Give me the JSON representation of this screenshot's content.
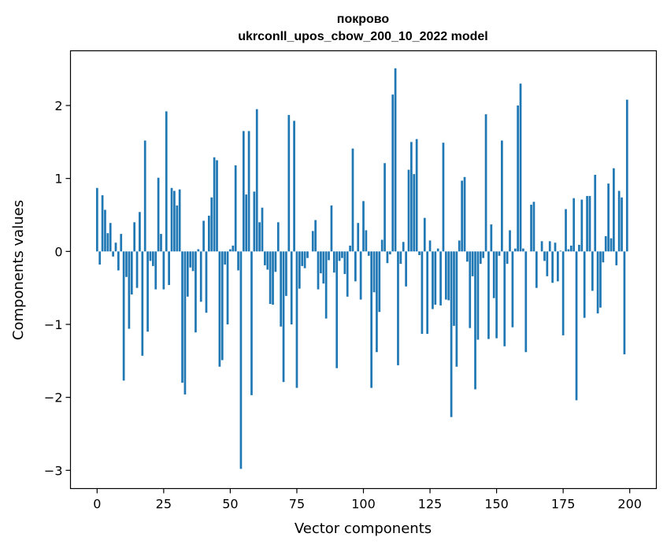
{
  "chart_data": {
    "type": "bar",
    "title_line1": "покрово",
    "title_line2": "ukrconll_upos_cbow_200_10_2022 model",
    "xlabel": "Vector components",
    "ylabel": "Components values",
    "xlim": [
      -10,
      210
    ],
    "ylim": [
      -3.25,
      2.75
    ],
    "xticks": [
      0,
      25,
      50,
      75,
      100,
      125,
      150,
      175,
      200
    ],
    "yticks": [
      -3,
      -2,
      -1,
      0,
      1,
      2
    ],
    "ytick_labels": [
      "−3",
      "−2",
      "−1",
      "0",
      "1",
      "2"
    ],
    "bar_color": "#1f77b4",
    "grid": false,
    "values": [
      0.87,
      -0.18,
      0.77,
      0.57,
      0.25,
      0.39,
      -0.07,
      0.12,
      -0.26,
      0.24,
      -1.77,
      -0.35,
      -1.06,
      -0.59,
      0.4,
      -0.5,
      0.54,
      -1.43,
      1.52,
      -1.1,
      -0.13,
      -0.2,
      -0.52,
      1.01,
      0.24,
      -0.52,
      1.92,
      -0.46,
      0.87,
      0.83,
      0.63,
      0.85,
      -1.8,
      -1.96,
      -0.62,
      -0.22,
      -0.27,
      -1.11,
      0.03,
      -0.69,
      0.42,
      -0.84,
      0.49,
      0.74,
      1.29,
      1.25,
      -1.58,
      -1.49,
      -0.18,
      -1.0,
      0.03,
      0.08,
      1.18,
      -0.26,
      -2.98,
      1.65,
      0.78,
      1.65,
      -1.97,
      0.82,
      1.95,
      0.4,
      0.6,
      -0.19,
      -0.25,
      -0.72,
      -0.73,
      -0.28,
      0.4,
      -1.03,
      -1.79,
      -0.61,
      1.87,
      -1.0,
      1.79,
      -1.87,
      -0.51,
      -0.2,
      -0.23,
      -0.09,
      0.0,
      0.28,
      0.43,
      -0.52,
      -0.3,
      -0.44,
      -0.92,
      -0.12,
      0.63,
      -0.29,
      -1.6,
      -0.13,
      -0.09,
      -0.31,
      -0.62,
      0.08,
      1.41,
      -0.41,
      0.39,
      -0.66,
      0.69,
      0.29,
      -0.06,
      -1.87,
      -0.56,
      -1.38,
      -0.83,
      0.16,
      1.21,
      -0.16,
      -0.04,
      2.15,
      2.51,
      -1.56,
      -0.17,
      0.13,
      -0.48,
      1.12,
      1.5,
      1.06,
      1.54,
      -0.05,
      -1.13,
      0.46,
      -1.13,
      0.15,
      -0.79,
      -0.73,
      0.04,
      -0.74,
      1.49,
      -0.66,
      -0.67,
      -2.27,
      -1.02,
      -1.58,
      0.15,
      0.97,
      1.02,
      -0.14,
      -1.05,
      -0.34,
      -1.89,
      -1.21,
      -0.17,
      -0.09,
      1.88,
      -1.2,
      0.37,
      -0.64,
      -1.19,
      -0.06,
      1.52,
      -1.3,
      -0.17,
      0.29,
      -1.04,
      0.04,
      2.0,
      2.3,
      0.04,
      -1.38,
      0.0,
      0.64,
      0.68,
      -0.5,
      0.0,
      0.14,
      -0.13,
      -0.34,
      0.14,
      -0.43,
      0.12,
      -0.41,
      0.01,
      -1.15,
      0.58,
      0.03,
      0.08,
      0.73,
      -2.04,
      0.09,
      0.71,
      -0.91,
      0.76,
      0.76,
      -0.54,
      1.05,
      -0.85,
      -0.77,
      -0.15,
      0.21,
      0.93,
      0.18,
      1.14,
      -0.19,
      0.83,
      0.74,
      -1.41,
      2.08
    ]
  }
}
